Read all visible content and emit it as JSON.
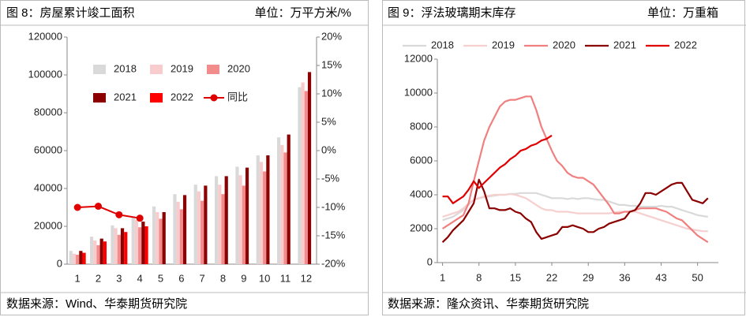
{
  "chart_data": [
    {
      "type": "bar",
      "title": "图 8：房屋累计竣工面积",
      "unit": "单位：万平方米/%",
      "source": "数据来源：Wind、华泰期货研究院",
      "categories": [
        "1",
        "2",
        "3",
        "4",
        "5",
        "6",
        "7",
        "8",
        "9",
        "10",
        "11",
        "12"
      ],
      "series": [
        {
          "name": "2018",
          "color": "#d9d9d9",
          "values": [
            7000,
            14500,
            20500,
            25000,
            30500,
            37000,
            42000,
            46500,
            51500,
            57500,
            67000,
            93500
          ]
        },
        {
          "name": "2019",
          "color": "#f8cccc",
          "values": [
            5500,
            12500,
            19000,
            23500,
            27500,
            33000,
            38500,
            42000,
            47000,
            54000,
            63000,
            96000
          ]
        },
        {
          "name": "2020",
          "color": "#f28b8b",
          "values": [
            5000,
            10000,
            15500,
            19500,
            24000,
            29000,
            33500,
            37000,
            41500,
            49000,
            59000,
            91500
          ]
        },
        {
          "name": "2021",
          "color": "#8b0000",
          "values": [
            7000,
            13500,
            19000,
            22500,
            27500,
            36500,
            41500,
            46500,
            51000,
            57500,
            68500,
            101500
          ]
        },
        {
          "name": "2022",
          "color": "#ff0000",
          "values": [
            6000,
            12000,
            17000,
            20000,
            null,
            null,
            null,
            null,
            null,
            null,
            null,
            null
          ]
        },
        {
          "name": "同比",
          "color": "#e00000",
          "type": "line",
          "axis": "y2",
          "values": [
            -10,
            -9.8,
            -11.3,
            -11.9,
            null,
            null,
            null,
            null,
            null,
            null,
            null,
            null
          ]
        }
      ],
      "ylim": [
        0,
        120000
      ],
      "yticks": [
        0,
        20000,
        40000,
        60000,
        80000,
        100000,
        120000
      ],
      "y2lim": [
        -20,
        20
      ],
      "y2ticks": [
        {
          "value": -20,
          "label": "-20%"
        },
        {
          "value": -15,
          "label": "-15%"
        },
        {
          "value": -10,
          "label": "-10%"
        },
        {
          "value": -5,
          "label": "-5%"
        },
        {
          "value": 0,
          "label": "0%"
        },
        {
          "value": 5,
          "label": "5%"
        },
        {
          "value": 10,
          "label": "10%"
        },
        {
          "value": 15,
          "label": "15%"
        },
        {
          "value": 20,
          "label": "20%"
        }
      ],
      "grid": false
    },
    {
      "type": "line",
      "title": "图 9：浮法玻璃期末库存",
      "unit": "单位：万重箱",
      "source": "数据来源：隆众资讯、华泰期货研究院",
      "x": [
        1,
        2,
        3,
        4,
        5,
        6,
        7,
        8,
        9,
        10,
        11,
        12,
        13,
        14,
        15,
        16,
        17,
        18,
        19,
        20,
        21,
        22,
        23,
        24,
        25,
        26,
        27,
        28,
        29,
        30,
        31,
        32,
        33,
        34,
        35,
        36,
        37,
        38,
        39,
        40,
        41,
        42,
        43,
        44,
        45,
        46,
        47,
        48,
        49,
        50,
        51,
        52
      ],
      "series": [
        {
          "name": "2018",
          "color": "#d9d9d9",
          "values": [
            2500,
            2600,
            2700,
            2900,
            3100,
            3400,
            3700,
            3800,
            3850,
            3900,
            3950,
            4000,
            4000,
            4050,
            4050,
            4100,
            4100,
            4100,
            4100,
            4000,
            3900,
            3800,
            3800,
            3800,
            3750,
            3800,
            3750,
            3800,
            3800,
            3750,
            3700,
            3700,
            3600,
            3500,
            3400,
            3400,
            3350,
            3350,
            3300,
            3300,
            3300,
            3300,
            3350,
            3300,
            3300,
            3200,
            3100,
            3000,
            2900,
            2800,
            2750,
            2700
          ]
        },
        {
          "name": "2019",
          "color": "#f6cfcf",
          "values": [
            2700,
            2800,
            2900,
            3000,
            3200,
            3500,
            3700,
            3800,
            3900,
            3950,
            4000,
            4000,
            4000,
            4050,
            4000,
            3900,
            3800,
            3600,
            3400,
            3200,
            3100,
            3100,
            3000,
            3000,
            3000,
            2950,
            2900,
            2900,
            2900,
            2900,
            2900,
            2900,
            2900,
            2950,
            3000,
            3000,
            3000,
            3000,
            2900,
            2800,
            2700,
            2600,
            2500,
            2400,
            2300,
            2200,
            2100,
            2000,
            1950,
            1900,
            1850,
            1850
          ]
        },
        {
          "name": "2020",
          "color": "#f08080",
          "values": [
            2000,
            2200,
            2400,
            2600,
            2800,
            3500,
            4800,
            6000,
            7200,
            8000,
            8600,
            9200,
            9500,
            9600,
            9600,
            9700,
            9800,
            9800,
            9000,
            8000,
            7300,
            6600,
            6000,
            5700,
            5300,
            5100,
            5000,
            5000,
            4800,
            4600,
            4200,
            3800,
            3400,
            2900,
            2900,
            3000,
            3000,
            3100,
            3200,
            3200,
            3200,
            3200,
            3100,
            3000,
            2800,
            2600,
            2500,
            2200,
            1900,
            1600,
            1400,
            1200
          ]
        },
        {
          "name": "2021",
          "color": "#8b0000",
          "values": [
            1200,
            1500,
            1900,
            2200,
            2500,
            3000,
            3500,
            4900,
            4200,
            3200,
            3200,
            3100,
            3100,
            3200,
            3000,
            2900,
            2600,
            2400,
            1800,
            1400,
            1500,
            1600,
            1700,
            2100,
            2100,
            2200,
            2100,
            2000,
            1800,
            1800,
            2000,
            2100,
            2300,
            2400,
            2500,
            2600,
            3000,
            3100,
            3500,
            4100,
            4100,
            4000,
            4200,
            4400,
            4600,
            4700,
            4700,
            4200,
            3700,
            3600,
            3500,
            3800
          ]
        },
        {
          "name": "2022",
          "color": "#e00000",
          "values": [
            3900,
            3900,
            3500,
            3700,
            3900,
            4300,
            4800,
            4400,
            4700,
            5000,
            5300,
            5600,
            5800,
            6100,
            6300,
            6600,
            6700,
            6900,
            7000,
            7200,
            7300,
            7500,
            null,
            null,
            null,
            null,
            null,
            null,
            null,
            null,
            null,
            null,
            null,
            null,
            null,
            null,
            null,
            null,
            null,
            null,
            null,
            null,
            null,
            null,
            null,
            null,
            null,
            null,
            null,
            null,
            null,
            null
          ]
        }
      ],
      "xlim": [
        0,
        54
      ],
      "xticks": [
        1,
        8,
        15,
        22,
        29,
        36,
        43,
        50
      ],
      "ylim": [
        0,
        12000
      ],
      "yticks": [
        0,
        2000,
        4000,
        6000,
        8000,
        10000,
        12000
      ],
      "grid": false
    }
  ]
}
